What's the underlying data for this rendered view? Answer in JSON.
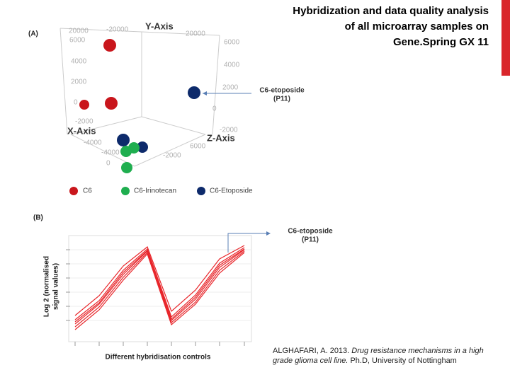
{
  "title": {
    "lines": [
      "Hybridization and data quality analysis",
      "of all microarray samples on",
      "Gene.Spring GX 11"
    ]
  },
  "panel_a": {
    "label": "(A)",
    "y_axis": "Y-Axis",
    "x_axis": "X-Axis",
    "z_axis": "Z-Axis",
    "ticks": [
      "20000",
      "-20000",
      "6000",
      "4000",
      "2000",
      "0",
      "-2000",
      "6000",
      "4000",
      "2000",
      "0",
      "-2000",
      "-4000",
      "-4000",
      "0",
      "-2000",
      "6000",
      "20000"
    ],
    "annotation": [
      "C6-etoposide",
      "(P11)"
    ],
    "legend": [
      "C6",
      "C6-Irinotecan",
      "C6-Etoposide"
    ]
  },
  "panel_b": {
    "label": "(B)",
    "y_axis": [
      "Log 2 (normalised",
      "signal values)"
    ],
    "x_axis": "Different hybridisation controls",
    "annotation": [
      "C6-etoposide",
      "(P11)"
    ]
  },
  "citation": {
    "author": "ALGHAFARI, A. 2013.",
    "work": "Drug resistance mechanisms in a high grade glioma cell line.",
    "rest": "Ph.D, University of Nottingham"
  }
}
